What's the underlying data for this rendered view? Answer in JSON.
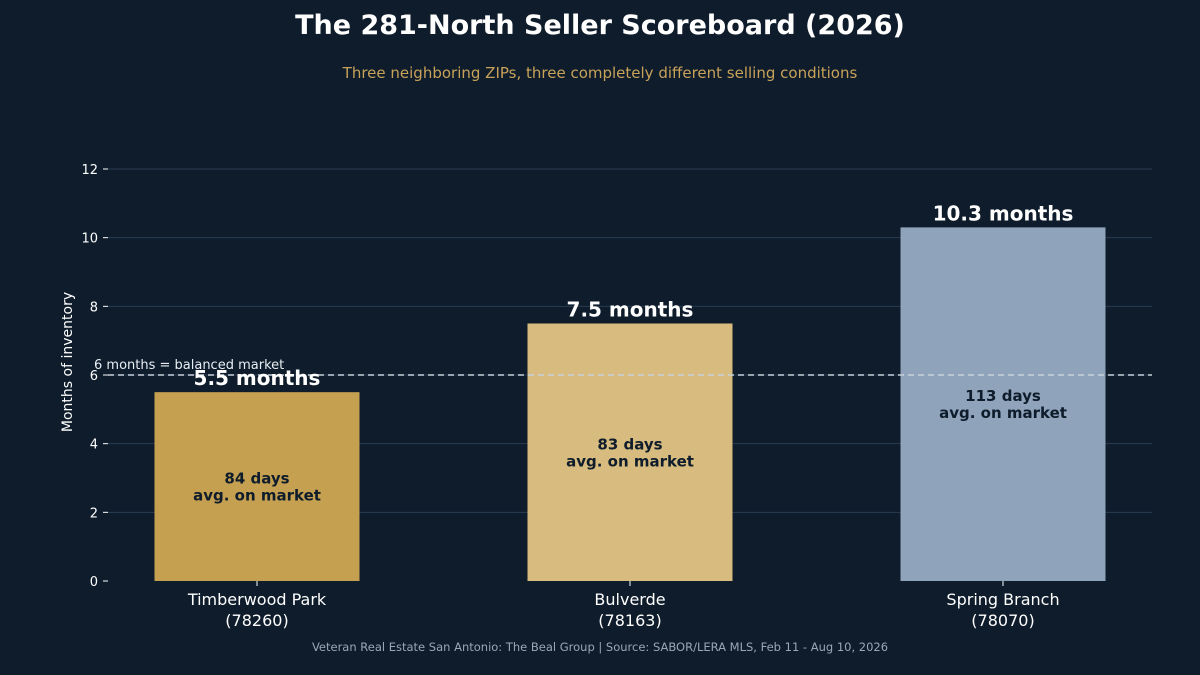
{
  "header": {
    "title": "The 281-North Seller Scoreboard (2026)",
    "subtitle": "Three neighboring ZIPs, three completely different selling conditions"
  },
  "footer": {
    "source": "Veteran Real Estate San Antonio: The Beal Group  |  Source: SABOR/LERA MLS, Feb 11 - Aug 10, 2026"
  },
  "colors": {
    "background": "#0e1c2b",
    "title": "#ffffff",
    "subtitle": "#c9a25a",
    "grid": "#2a3d50",
    "reference_line": "#c8d2dc"
  },
  "chart_data": {
    "type": "bar",
    "ylabel": "Months of inventory",
    "xlabel": "",
    "ylim": [
      0,
      12
    ],
    "yticks": [
      0,
      2,
      4,
      6,
      8,
      10,
      12
    ],
    "grid": true,
    "categories": [
      [
        "Timberwood Park",
        "(78260)"
      ],
      [
        "Bulverde",
        "(78163)"
      ],
      [
        "Spring Branch",
        "(78070)"
      ]
    ],
    "values": [
      5.5,
      7.5,
      10.3
    ],
    "value_labels": [
      "5.5 months",
      "7.5 months",
      "10.3 months"
    ],
    "inner_labels": [
      [
        "84 days",
        "avg. on market"
      ],
      [
        "83 days",
        "avg. on market"
      ],
      [
        "113 days",
        "avg. on market"
      ]
    ],
    "bar_colors": [
      "#c4a050",
      "#d8bb7e",
      "#8fa3ba"
    ],
    "reference_line": {
      "value": 6,
      "label": "6 months = balanced market",
      "style": "dashed"
    }
  }
}
